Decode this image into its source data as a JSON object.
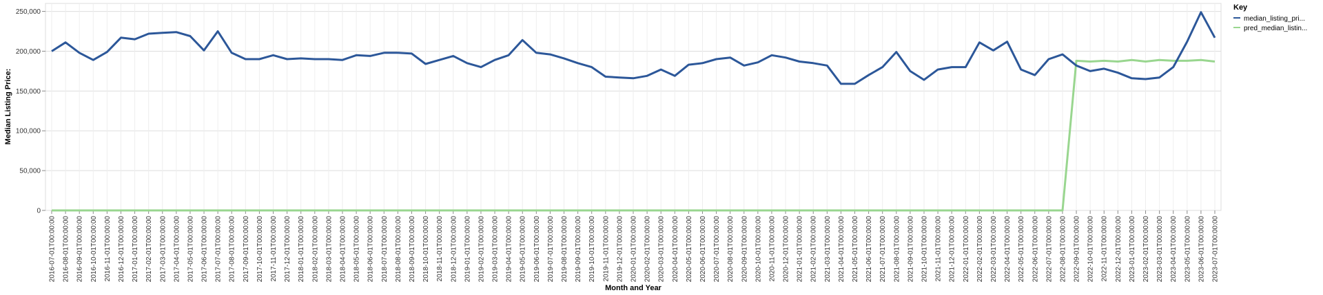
{
  "chart_data": {
    "type": "line",
    "xlabel": "Month and Year",
    "ylabel": "Median Listing Price:",
    "ylim": [
      0,
      260000
    ],
    "yticks": [
      0,
      50000,
      100000,
      150000,
      200000,
      250000
    ],
    "ytick_labels": [
      "0",
      "50,000",
      "100,000",
      "150,000",
      "200,000",
      "250,000"
    ],
    "grid": true,
    "legend": {
      "title": "Key",
      "placement": "top-right",
      "entries": [
        {
          "label": "median_listing_pri...",
          "color": "#2c5799"
        },
        {
          "label": "pred_median_listin...",
          "color": "#99d68f"
        }
      ]
    },
    "x": [
      "2016-07-01T00:00:00",
      "2016-08-01T00:00:00",
      "2016-09-01T00:00:00",
      "2016-10-01T00:00:00",
      "2016-11-01T00:00:00",
      "2016-12-01T00:00:00",
      "2017-01-01T00:00:00",
      "2017-02-01T00:00:00",
      "2017-03-01T00:00:00",
      "2017-04-01T00:00:00",
      "2017-05-01T00:00:00",
      "2017-06-01T00:00:00",
      "2017-07-01T00:00:00",
      "2017-08-01T00:00:00",
      "2017-09-01T00:00:00",
      "2017-10-01T00:00:00",
      "2017-11-01T00:00:00",
      "2017-12-01T00:00:00",
      "2018-01-01T00:00:00",
      "2018-02-01T00:00:00",
      "2018-03-01T00:00:00",
      "2018-04-01T00:00:00",
      "2018-05-01T00:00:00",
      "2018-06-01T00:00:00",
      "2018-07-01T00:00:00",
      "2018-08-01T00:00:00",
      "2018-09-01T00:00:00",
      "2018-10-01T00:00:00",
      "2018-11-01T00:00:00",
      "2018-12-01T00:00:00",
      "2019-01-01T00:00:00",
      "2019-02-01T00:00:00",
      "2019-03-01T00:00:00",
      "2019-04-01T00:00:00",
      "2019-05-01T00:00:00",
      "2019-06-01T00:00:00",
      "2019-07-01T00:00:00",
      "2019-08-01T00:00:00",
      "2019-09-01T00:00:00",
      "2019-10-01T00:00:00",
      "2019-11-01T00:00:00",
      "2019-12-01T00:00:00",
      "2020-01-01T00:00:00",
      "2020-02-01T00:00:00",
      "2020-03-01T00:00:00",
      "2020-04-01T00:00:00",
      "2020-05-01T00:00:00",
      "2020-06-01T00:00:00",
      "2020-07-01T00:00:00",
      "2020-08-01T00:00:00",
      "2020-09-01T00:00:00",
      "2020-10-01T00:00:00",
      "2020-11-01T00:00:00",
      "2020-12-01T00:00:00",
      "2021-01-01T00:00:00",
      "2021-02-01T00:00:00",
      "2021-03-01T00:00:00",
      "2021-04-01T00:00:00",
      "2021-05-01T00:00:00",
      "2021-06-01T00:00:00",
      "2021-07-01T00:00:00",
      "2021-08-01T00:00:00",
      "2021-09-01T00:00:00",
      "2021-10-01T00:00:00",
      "2021-11-01T00:00:00",
      "2021-12-01T00:00:00",
      "2022-01-01T00:00:00",
      "2022-02-01T00:00:00",
      "2022-03-01T00:00:00",
      "2022-04-01T00:00:00",
      "2022-05-01T00:00:00",
      "2022-06-01T00:00:00",
      "2022-07-01T00:00:00",
      "2022-08-01T00:00:00",
      "2022-09-01T00:00:00",
      "2022-10-01T00:00:00",
      "2022-11-01T00:00:00",
      "2022-12-01T00:00:00",
      "2023-01-01T00:00:00",
      "2023-02-01T00:00:00",
      "2023-03-01T00:00:00",
      "2023-04-01T00:00:00",
      "2023-05-01T00:00:00",
      "2023-06-01T00:00:00",
      "2023-07-01T00:00:00"
    ],
    "series": [
      {
        "name": "median_listing_pri...",
        "color": "#2c5799",
        "values": [
          200000,
          211000,
          198000,
          189000,
          199000,
          217000,
          215000,
          222000,
          223000,
          224000,
          219000,
          201000,
          225000,
          198000,
          190000,
          190000,
          195000,
          190000,
          191000,
          190000,
          190000,
          189000,
          195000,
          194000,
          198000,
          198000,
          197000,
          184000,
          189000,
          194000,
          185000,
          180000,
          189000,
          195000,
          214000,
          198000,
          196000,
          191000,
          185000,
          180000,
          168000,
          167000,
          166000,
          169000,
          177000,
          169000,
          183000,
          185000,
          190000,
          192000,
          182000,
          186000,
          195000,
          192000,
          187000,
          185000,
          182000,
          159000,
          159000,
          170000,
          180000,
          199000,
          175000,
          164000,
          177000,
          180000,
          180000,
          211000,
          201000,
          212000,
          177000,
          170000,
          190000,
          196000,
          182000,
          175000,
          178000,
          173000,
          166000,
          165000,
          167000,
          180000,
          212000,
          249000,
          217000
        ]
      },
      {
        "name": "pred_median_listin...",
        "color": "#99d68f",
        "values": [
          0,
          0,
          0,
          0,
          0,
          0,
          0,
          0,
          0,
          0,
          0,
          0,
          0,
          0,
          0,
          0,
          0,
          0,
          0,
          0,
          0,
          0,
          0,
          0,
          0,
          0,
          0,
          0,
          0,
          0,
          0,
          0,
          0,
          0,
          0,
          0,
          0,
          0,
          0,
          0,
          0,
          0,
          0,
          0,
          0,
          0,
          0,
          0,
          0,
          0,
          0,
          0,
          0,
          0,
          0,
          0,
          0,
          0,
          0,
          0,
          0,
          0,
          0,
          0,
          0,
          0,
          0,
          0,
          0,
          0,
          0,
          0,
          0,
          0,
          188000,
          187000,
          188000,
          187000,
          189000,
          187000,
          189000,
          188000,
          188000,
          189000,
          187000
        ]
      }
    ]
  }
}
